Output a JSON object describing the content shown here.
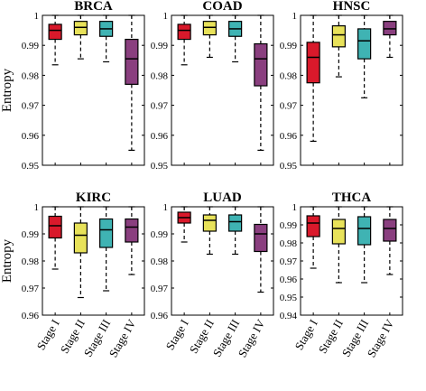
{
  "chart_data": [
    {
      "type": "box",
      "title": "BRCA",
      "ylabel": "Entropy",
      "ylim": [
        0.95,
        1.0
      ],
      "yticks": [
        0.95,
        0.96,
        0.97,
        0.98,
        0.99,
        1.0
      ],
      "ytick_labels": [
        "0.95",
        "0.96",
        "0.97",
        "0.98",
        "0.99",
        "1"
      ],
      "categories": [
        "Stage I",
        "Stage II",
        "Stage III",
        "Stage IV"
      ],
      "boxes": [
        {
          "min": 0.9835,
          "q1": 0.992,
          "median": 0.995,
          "q3": 0.997,
          "max": 1.0
        },
        {
          "min": 0.9855,
          "q1": 0.9935,
          "median": 0.996,
          "q3": 0.998,
          "max": 1.0
        },
        {
          "min": 0.9845,
          "q1": 0.993,
          "median": 0.9955,
          "q3": 0.998,
          "max": 1.0
        },
        {
          "min": 0.955,
          "q1": 0.977,
          "median": 0.9855,
          "q3": 0.992,
          "max": 1.0
        }
      ]
    },
    {
      "type": "box",
      "title": "COAD",
      "ylabel": "",
      "ylim": [
        0.95,
        1.0
      ],
      "yticks": [
        0.95,
        0.96,
        0.97,
        0.98,
        0.99,
        1.0
      ],
      "ytick_labels": [
        "0.95",
        "0.96",
        "0.97",
        "0.98",
        "0.99",
        "1"
      ],
      "categories": [
        "Stage I",
        "Stage II",
        "Stage III",
        "Stage IV"
      ],
      "boxes": [
        {
          "min": 0.9835,
          "q1": 0.992,
          "median": 0.995,
          "q3": 0.997,
          "max": 1.0
        },
        {
          "min": 0.986,
          "q1": 0.9935,
          "median": 0.996,
          "q3": 0.998,
          "max": 1.0
        },
        {
          "min": 0.9845,
          "q1": 0.993,
          "median": 0.9955,
          "q3": 0.998,
          "max": 1.0
        },
        {
          "min": 0.955,
          "q1": 0.9765,
          "median": 0.9855,
          "q3": 0.9905,
          "max": 1.0
        }
      ]
    },
    {
      "type": "box",
      "title": "HNSC",
      "ylabel": "",
      "ylim": [
        0.95,
        1.0
      ],
      "yticks": [
        0.95,
        0.96,
        0.97,
        0.98,
        0.99,
        1.0
      ],
      "ytick_labels": [
        "0.95",
        "0.96",
        "0.97",
        "0.98",
        "0.99",
        "1"
      ],
      "categories": [
        "Stage I",
        "Stage II",
        "Stage III",
        "Stage IV"
      ],
      "boxes": [
        {
          "min": 0.958,
          "q1": 0.9775,
          "median": 0.986,
          "q3": 0.991,
          "max": 1.0
        },
        {
          "min": 0.9795,
          "q1": 0.9895,
          "median": 0.9935,
          "q3": 0.9965,
          "max": 1.0
        },
        {
          "min": 0.9725,
          "q1": 0.9855,
          "median": 0.9915,
          "q3": 0.9955,
          "max": 1.0
        },
        {
          "min": 0.986,
          "q1": 0.9935,
          "median": 0.9955,
          "q3": 0.998,
          "max": 1.0
        }
      ]
    },
    {
      "type": "box",
      "title": "KIRC",
      "ylabel": "Entropy",
      "ylim": [
        0.96,
        1.0
      ],
      "yticks": [
        0.96,
        0.97,
        0.98,
        0.99,
        1.0
      ],
      "ytick_labels": [
        "0.96",
        "0.97",
        "0.98",
        "0.99",
        "1"
      ],
      "categories": [
        "Stage I",
        "Stage II",
        "Stage III",
        "Stage IV"
      ],
      "boxes": [
        {
          "min": 0.977,
          "q1": 0.9885,
          "median": 0.993,
          "q3": 0.9965,
          "max": 1.0
        },
        {
          "min": 0.9665,
          "q1": 0.983,
          "median": 0.9895,
          "q3": 0.994,
          "max": 1.0
        },
        {
          "min": 0.969,
          "q1": 0.985,
          "median": 0.9915,
          "q3": 0.9955,
          "max": 1.0
        },
        {
          "min": 0.975,
          "q1": 0.987,
          "median": 0.9925,
          "q3": 0.9955,
          "max": 1.0
        }
      ]
    },
    {
      "type": "box",
      "title": "LUAD",
      "ylabel": "",
      "ylim": [
        0.96,
        1.0
      ],
      "yticks": [
        0.96,
        0.97,
        0.98,
        0.99,
        1.0
      ],
      "ytick_labels": [
        "0.96",
        "0.97",
        "0.98",
        "0.99",
        "1"
      ],
      "categories": [
        "Stage I",
        "Stage II",
        "Stage III",
        "Stage IV"
      ],
      "boxes": [
        {
          "min": 0.987,
          "q1": 0.994,
          "median": 0.996,
          "q3": 0.998,
          "max": 1.0
        },
        {
          "min": 0.9825,
          "q1": 0.991,
          "median": 0.995,
          "q3": 0.997,
          "max": 1.0
        },
        {
          "min": 0.9825,
          "q1": 0.991,
          "median": 0.9945,
          "q3": 0.997,
          "max": 1.0
        },
        {
          "min": 0.9685,
          "q1": 0.9835,
          "median": 0.99,
          "q3": 0.9935,
          "max": 1.0
        }
      ]
    },
    {
      "type": "box",
      "title": "THCA",
      "ylabel": "",
      "ylim": [
        0.94,
        1.0
      ],
      "yticks": [
        0.94,
        0.95,
        0.96,
        0.97,
        0.98,
        0.99,
        1.0
      ],
      "ytick_labels": [
        "0.94",
        "0.95",
        "0.96",
        "0.97",
        "0.98",
        "0.99",
        "1"
      ],
      "categories": [
        "Stage I",
        "Stage II",
        "Stage III",
        "Stage IV"
      ],
      "boxes": [
        {
          "min": 0.966,
          "q1": 0.9835,
          "median": 0.991,
          "q3": 0.995,
          "max": 1.0
        },
        {
          "min": 0.958,
          "q1": 0.9795,
          "median": 0.988,
          "q3": 0.993,
          "max": 1.0
        },
        {
          "min": 0.958,
          "q1": 0.979,
          "median": 0.988,
          "q3": 0.9945,
          "max": 1.0
        },
        {
          "min": 0.9625,
          "q1": 0.981,
          "median": 0.988,
          "q3": 0.993,
          "max": 1.0
        }
      ]
    }
  ],
  "colors": {
    "stage_fills": [
      "#d9192b",
      "#e8e25a",
      "#3fb3b3",
      "#8a3f7f"
    ],
    "axis": "#000000"
  }
}
